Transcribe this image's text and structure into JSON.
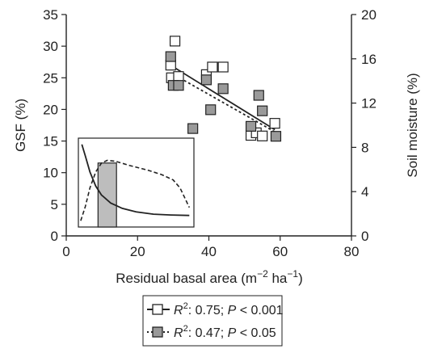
{
  "chart_data": {
    "type": "scatter",
    "xlabel_parts": [
      "Residual basal area (m",
      "−2",
      " ha",
      "−1",
      ")"
    ],
    "ylabel_left": "GSF (%)",
    "ylabel_right": "Soil moisture (%)",
    "x_axis": {
      "range": [
        0,
        80
      ],
      "ticks": [
        0,
        20,
        40,
        60,
        80
      ]
    },
    "y_left_axis": {
      "range": [
        0,
        35
      ],
      "ticks": [
        0,
        5,
        10,
        15,
        20,
        25,
        30,
        35
      ]
    },
    "y_right_axis": {
      "range": [
        0,
        20
      ],
      "ticks": [
        0,
        4,
        8,
        12,
        16,
        20
      ]
    },
    "series": [
      {
        "marker": "open-square",
        "axis": "left",
        "line_style": "solid",
        "points": [
          [
            29.3,
            27.0
          ],
          [
            29.5,
            25.0
          ],
          [
            30.5,
            30.8
          ],
          [
            31.5,
            25.2
          ],
          [
            39.3,
            25.5
          ],
          [
            41.0,
            26.7
          ],
          [
            44.0,
            26.7
          ],
          [
            51.8,
            15.9
          ],
          [
            53.3,
            16.3
          ],
          [
            55.0,
            15.8
          ],
          [
            58.5,
            17.8
          ]
        ],
        "fit": {
          "x": [
            29.5,
            58.5
          ],
          "y": [
            26.9,
            16.8
          ]
        },
        "legend_parts": [
          "R",
          "2",
          ": 0.75; ",
          "P",
          " < 0.001"
        ]
      },
      {
        "marker": "filled-square",
        "axis": "right",
        "line_style": "dotted",
        "points": [
          [
            29.3,
            16.2
          ],
          [
            30.0,
            13.6
          ],
          [
            31.5,
            13.6
          ],
          [
            35.5,
            9.7
          ],
          [
            39.3,
            14.1
          ],
          [
            40.5,
            11.4
          ],
          [
            44.0,
            13.3
          ],
          [
            51.8,
            9.9
          ],
          [
            54.0,
            12.7
          ],
          [
            55.0,
            11.3
          ],
          [
            58.8,
            9.0
          ]
        ],
        "fit": {
          "x": [
            29.5,
            58.5
          ],
          "y": [
            14.7,
            9.4
          ]
        },
        "legend_parts": [
          "R",
          "2",
          ": 0.47; ",
          "P",
          " < 0.05"
        ]
      }
    ],
    "inset": {
      "x_range": [
        0,
        100
      ],
      "y_range": [
        0,
        100
      ],
      "bar": {
        "x0": 17,
        "x1": 33,
        "height": 72
      },
      "solid_curve": [
        [
          3,
          93
        ],
        [
          6,
          80
        ],
        [
          10,
          62
        ],
        [
          15,
          46
        ],
        [
          20,
          36
        ],
        [
          28,
          27
        ],
        [
          38,
          21
        ],
        [
          50,
          17
        ],
        [
          65,
          14.5
        ],
        [
          80,
          13.5
        ],
        [
          96,
          13
        ]
      ],
      "dashed_curve": [
        [
          2,
          7
        ],
        [
          6,
          23
        ],
        [
          10,
          44
        ],
        [
          15,
          62
        ],
        [
          20,
          72
        ],
        [
          25,
          75
        ],
        [
          32,
          74
        ],
        [
          45,
          69
        ],
        [
          60,
          64
        ],
        [
          72,
          59
        ],
        [
          82,
          53
        ],
        [
          88,
          44
        ],
        [
          92,
          33
        ],
        [
          96,
          22
        ]
      ]
    }
  }
}
